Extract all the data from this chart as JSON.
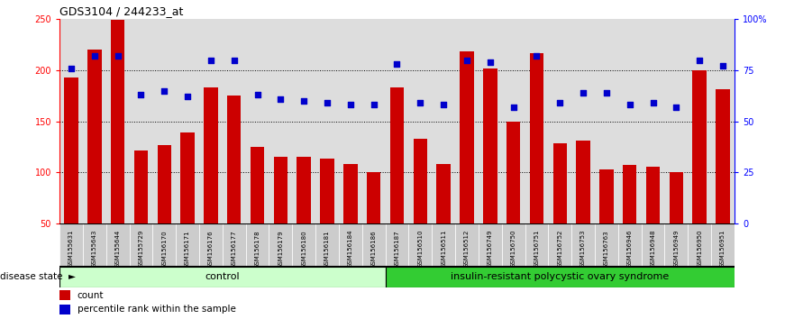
{
  "title": "GDS3104 / 244233_at",
  "samples": [
    "GSM155631",
    "GSM155643",
    "GSM155644",
    "GSM155729",
    "GSM156170",
    "GSM156171",
    "GSM156176",
    "GSM156177",
    "GSM156178",
    "GSM156179",
    "GSM156180",
    "GSM156181",
    "GSM156184",
    "GSM156186",
    "GSM156187",
    "GSM156510",
    "GSM156511",
    "GSM156512",
    "GSM156749",
    "GSM156750",
    "GSM156751",
    "GSM156752",
    "GSM156753",
    "GSM156763",
    "GSM156946",
    "GSM156948",
    "GSM156949",
    "GSM156950",
    "GSM156951"
  ],
  "counts": [
    193,
    220,
    249,
    121,
    127,
    139,
    183,
    175,
    125,
    115,
    115,
    113,
    108,
    100,
    183,
    133,
    108,
    218,
    202,
    150,
    217,
    128,
    131,
    103,
    107,
    105,
    100,
    200,
    181
  ],
  "percentile_ranks": [
    76,
    82,
    82,
    63,
    65,
    62,
    80,
    80,
    63,
    61,
    60,
    59,
    58,
    58,
    78,
    59,
    58,
    80,
    79,
    57,
    82,
    59,
    64,
    64,
    58,
    59,
    57,
    80,
    77
  ],
  "control_count": 14,
  "disease_count": 15,
  "bar_color": "#cc0000",
  "dot_color": "#0000cc",
  "ylim_left": [
    50,
    250
  ],
  "ylim_right": [
    0,
    100
  ],
  "yticks_left": [
    50,
    100,
    150,
    200,
    250
  ],
  "yticks_right": [
    0,
    25,
    50,
    75,
    100
  ],
  "yticklabels_right": [
    "0",
    "25",
    "50",
    "75",
    "100%"
  ],
  "control_label": "control",
  "disease_label": "insulin-resistant polycystic ovary syndrome",
  "disease_state_label": "disease state",
  "legend_count_label": "count",
  "legend_pct_label": "percentile rank within the sample",
  "control_color_light": "#ccffcc",
  "disease_color": "#33cc33",
  "cell_bg_color": "#cccccc",
  "plot_bg_color": "#dddddd",
  "bar_bottom": 50,
  "grid_dotted_vals": [
    100,
    150,
    200
  ]
}
